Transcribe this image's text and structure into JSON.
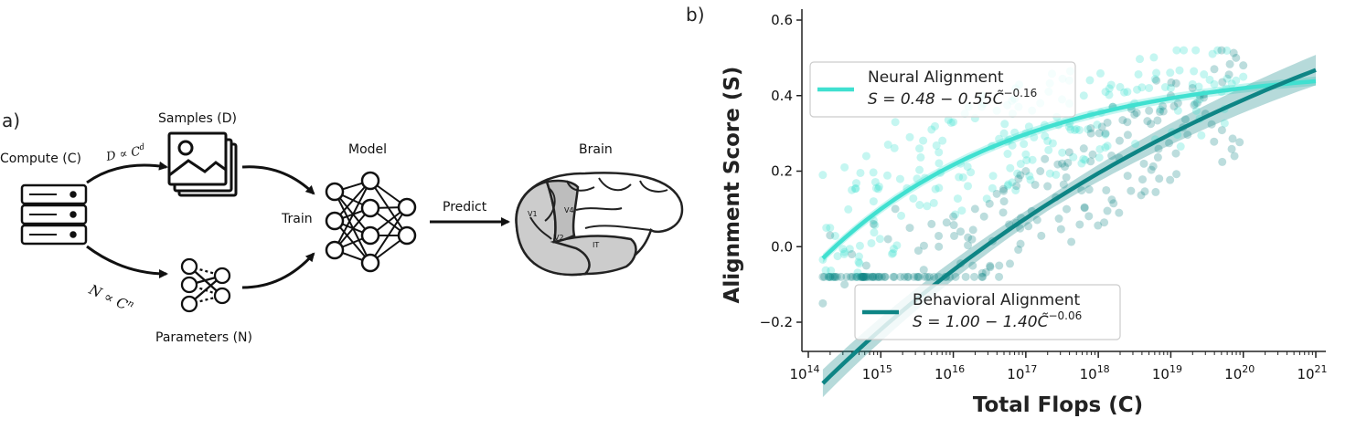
{
  "panel_a": {
    "label": "a)",
    "compute_label": "Compute (C)",
    "samples_label": "Samples (D)",
    "parameters_label": "Parameters (N)",
    "model_label": "Model",
    "brain_label": "Brain",
    "train_label": "Train",
    "predict_label": "Predict",
    "formula_d": "D ∝ C",
    "formula_d_exp": "d",
    "formula_n": "N ∝ C",
    "formula_n_exp": "n",
    "brain_regions": [
      "V1",
      "V4",
      "V2",
      "IT"
    ],
    "icons": [
      "server-stack-icon",
      "image-stack-icon",
      "small-network-icon",
      "neural-network-icon",
      "brain-icon"
    ]
  },
  "panel_b": {
    "label": "b)",
    "chart_data": {
      "type": "scatter",
      "xlabel": "Total Flops (C)",
      "ylabel": "Alignment Score (S)",
      "x_scale": "log",
      "xlim": [
        100000000000000.0,
        1e+21
      ],
      "ylim": [
        -0.2,
        0.6
      ],
      "xticks": [
        "10^14",
        "10^15",
        "10^16",
        "10^17",
        "10^18",
        "10^19",
        "10^20",
        "10^21"
      ],
      "yticks": [
        "−0.2",
        "0.0",
        "0.2",
        "0.4",
        "0.6"
      ],
      "legend_position": "top-left and bottom-center",
      "series": [
        {
          "name": "Neural Alignment",
          "fit_label": "S = 0.48 − 0.55C̃^−0.16",
          "color": "#40E0D0",
          "fit": {
            "a": 0.48,
            "b": 0.55,
            "c": 0.16
          },
          "x_log10": [
            14.2,
            14.5,
            14.8,
            15.1,
            15.4,
            15.7,
            16.0,
            16.3,
            16.6,
            16.9,
            17.2,
            17.5,
            17.8,
            18.1,
            18.4,
            18.7,
            19.0,
            19.3,
            19.6,
            19.9,
            14.3,
            14.9,
            15.5,
            16.1,
            16.7,
            17.3,
            17.9,
            18.5,
            19.1,
            19.7,
            15.2,
            16.4,
            17.6,
            18.8,
            20.0,
            14.6,
            15.8,
            17.0,
            18.2,
            19.4
          ],
          "y": [
            0.19,
            0.21,
            0.24,
            0.27,
            0.29,
            0.31,
            0.33,
            0.34,
            0.36,
            0.37,
            0.38,
            0.39,
            0.4,
            0.41,
            0.41,
            0.42,
            0.42,
            0.43,
            0.43,
            0.44,
            0.05,
            0.12,
            0.18,
            0.22,
            0.3,
            0.28,
            0.35,
            0.38,
            0.36,
            0.41,
            0.33,
            0.4,
            0.44,
            0.46,
            0.45,
            0.15,
            0.25,
            0.3,
            0.37,
            0.39
          ]
        },
        {
          "name": "Behavioral Alignment",
          "fit_label": "S = 1.00 − 1.40C̃^−0.06",
          "color": "#0E8585",
          "fit": {
            "a": 1.0,
            "b": 1.4,
            "c": 0.06
          },
          "x_log10": [
            14.2,
            14.5,
            14.8,
            15.1,
            15.4,
            15.7,
            16.0,
            16.3,
            16.6,
            16.9,
            17.2,
            17.5,
            17.8,
            18.1,
            18.4,
            18.7,
            19.0,
            19.3,
            19.6,
            19.9,
            14.3,
            14.9,
            15.5,
            16.1,
            16.7,
            17.3,
            17.9,
            18.5,
            19.1,
            19.7,
            15.2,
            16.4,
            17.6,
            18.8,
            20.0,
            14.6,
            15.8,
            17.0,
            18.2,
            19.4
          ],
          "y": [
            -0.15,
            -0.1,
            -0.05,
            0.02,
            0.05,
            0.06,
            0.08,
            0.1,
            0.14,
            0.18,
            0.2,
            0.22,
            0.26,
            0.3,
            0.33,
            0.36,
            0.4,
            0.42,
            0.47,
            0.5,
            0.03,
            0.06,
            -0.08,
            0.04,
            0.12,
            0.16,
            0.3,
            0.35,
            0.38,
            0.52,
            0.1,
            -0.07,
            0.25,
            0.44,
            0.48,
            -0.02,
            0.0,
            0.2,
            0.37,
            0.4
          ]
        }
      ]
    }
  }
}
